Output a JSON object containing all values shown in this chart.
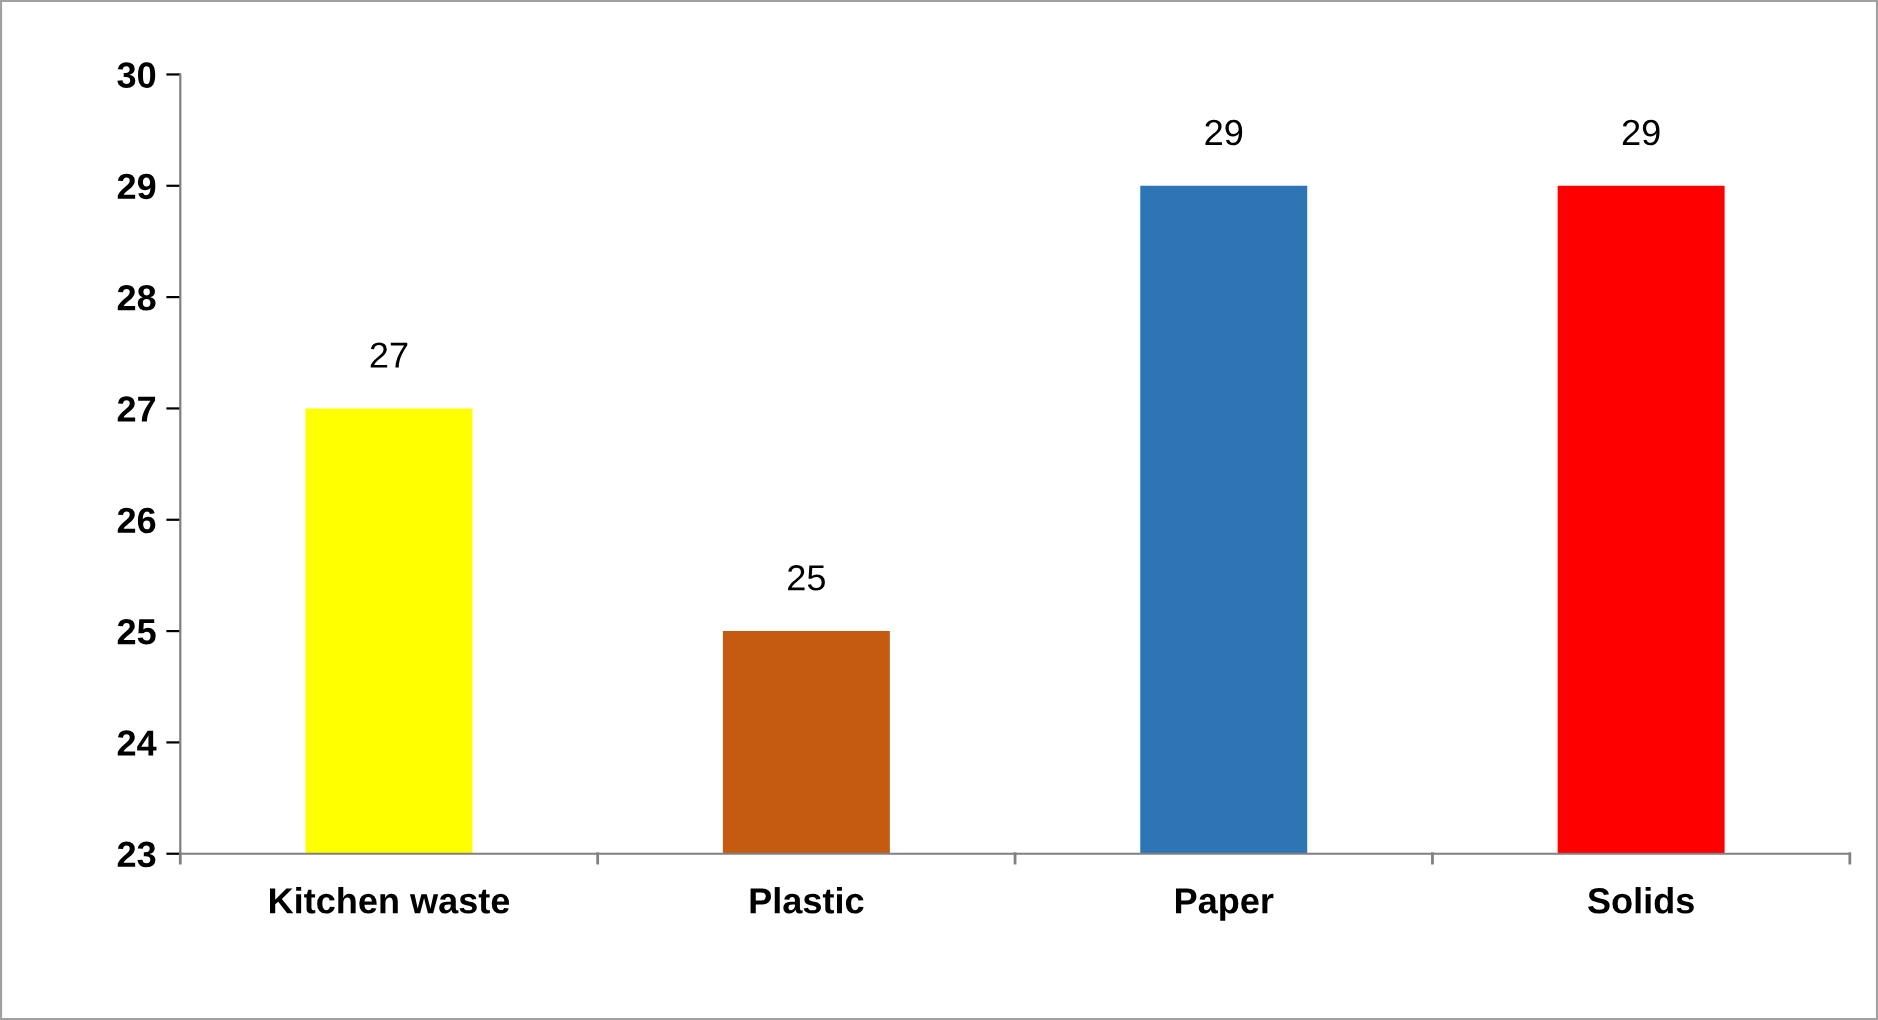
{
  "chart_data": {
    "type": "bar",
    "categories": [
      "Kitchen waste",
      "Plastic",
      "Paper",
      "Solids"
    ],
    "values": [
      27,
      25,
      29,
      29
    ],
    "colors": [
      "#ffff00",
      "#c55a11",
      "#2e75b6",
      "#ff0000"
    ],
    "ylim": [
      23,
      30
    ],
    "yticks": [
      23,
      24,
      25,
      26,
      27,
      28,
      29,
      30
    ],
    "data_labels": true,
    "grid": false
  }
}
